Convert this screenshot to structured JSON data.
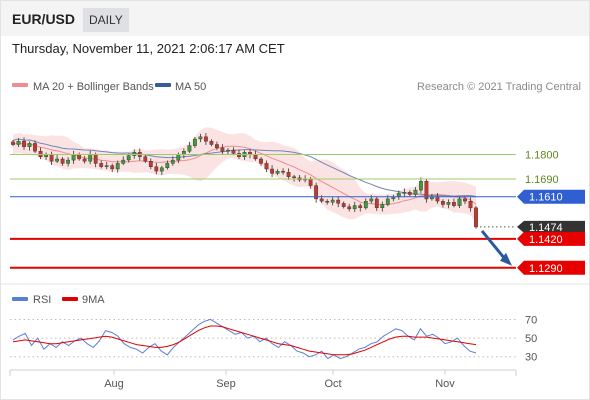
{
  "header": {
    "symbol": "EUR/USD",
    "timeframe": "DAILY"
  },
  "date_line": "Thursday, November 11, 2021 2:06:17 AM CET",
  "credit": "Research © 2021 Trading Central",
  "legend": [
    {
      "label": "MA 20 + Bollinger Bands",
      "color": "#f08c8c"
    },
    {
      "label": "MA 50",
      "color": "#3a5a9c"
    }
  ],
  "rsi_legend": [
    {
      "label": "RSI",
      "color": "#5b7fd6"
    },
    {
      "label": "9MA",
      "color": "#e00000"
    }
  ],
  "levels": [
    {
      "label": "1.1800",
      "value": 1.18,
      "kind": "resistance",
      "color": "#9ccc6a",
      "text_color": "#5c8a1e"
    },
    {
      "label": "1.1690",
      "value": 1.169,
      "kind": "resistance",
      "color": "#9ccc6a",
      "text_color": "#5c8a1e"
    },
    {
      "label": "1.1610",
      "value": 1.161,
      "kind": "pivot",
      "color": "#2f5fd0",
      "text_color": "#ffffff"
    },
    {
      "label": "1.1474",
      "value": 1.1474,
      "kind": "last",
      "color": "#333333",
      "text_color": "#ffffff"
    },
    {
      "label": "1.1420",
      "value": 1.142,
      "kind": "support",
      "color": "#e60000",
      "text_color": "#ffffff"
    },
    {
      "label": "1.1290",
      "value": 1.129,
      "kind": "support",
      "color": "#e60000",
      "text_color": "#ffffff"
    }
  ],
  "chart_data": [
    {
      "type": "candlestick",
      "x_ticks": [
        "Aug",
        "Sep",
        "Oct",
        "Nov"
      ],
      "ylim": [
        1.1235,
        1.2068
      ],
      "last_price": 1.1474,
      "forecast": "bearish arrow toward 1.1290",
      "candles_start": [
        1.186,
        1.184,
        1.186,
        1.183,
        1.185,
        1.181,
        1.179,
        1.1795
      ],
      "candle_closes": [
        1.1845,
        1.186,
        1.1835,
        1.185,
        1.1815,
        1.179,
        1.18,
        1.177,
        1.178,
        1.176,
        1.1775,
        1.18,
        1.178,
        1.177,
        1.18,
        1.176,
        1.1745,
        1.175,
        1.1735,
        1.176,
        1.1775,
        1.1795,
        1.181,
        1.179,
        1.177,
        1.1745,
        1.1725,
        1.174,
        1.176,
        1.1775,
        1.18,
        1.1815,
        1.184,
        1.187,
        1.188,
        1.186,
        1.1845,
        1.183,
        1.1815,
        1.182,
        1.1805,
        1.179,
        1.181,
        1.18,
        1.178,
        1.176,
        1.1735,
        1.1715,
        1.1725,
        1.172,
        1.17,
        1.1695,
        1.1685,
        1.169,
        1.166,
        1.16,
        1.159,
        1.1585,
        1.1595,
        1.158,
        1.1565,
        1.1555,
        1.157,
        1.156,
        1.159,
        1.16,
        1.156,
        1.1575,
        1.16,
        1.161,
        1.1625,
        1.163,
        1.162,
        1.164,
        1.168,
        1.16,
        1.161,
        1.159,
        1.1575,
        1.1585,
        1.157,
        1.16,
        1.159,
        1.156,
        1.1474
      ],
      "ma20_band": {
        "ma20": "smoothed middle band",
        "bands": "shaded pink envelope"
      },
      "ma50": "declining blue line"
    },
    {
      "type": "line",
      "name": "RSI panel",
      "y_ticks": [
        "70",
        "50",
        "30"
      ],
      "ylim": [
        20,
        78
      ],
      "rsi": [
        48,
        52,
        55,
        42,
        50,
        38,
        44,
        40,
        46,
        42,
        47,
        50,
        44,
        40,
        47,
        58,
        56,
        52,
        44,
        40,
        38,
        34,
        40,
        44,
        36,
        32,
        40,
        46,
        52,
        58,
        64,
        68,
        70,
        66,
        62,
        58,
        54,
        56,
        50,
        52,
        46,
        50,
        44,
        40,
        46,
        42,
        36,
        34,
        30,
        32,
        36,
        28,
        32,
        28,
        30,
        34,
        38,
        40,
        44,
        46,
        52,
        56,
        60,
        58,
        52,
        48,
        60,
        52,
        54,
        50,
        44,
        46,
        50,
        42,
        36,
        34
      ],
      "ma9": [
        46,
        47,
        48,
        47,
        46,
        45,
        44,
        44,
        45,
        46,
        47,
        48,
        49,
        50,
        51,
        52,
        51,
        49,
        47,
        45,
        43,
        42,
        41,
        40,
        40,
        41,
        43,
        46,
        50,
        54,
        58,
        61,
        63,
        63,
        62,
        60,
        58,
        56,
        54,
        52,
        50,
        48,
        46,
        44,
        43,
        42,
        40,
        38,
        36,
        35,
        34,
        33,
        32,
        32,
        32,
        33,
        35,
        37,
        40,
        43,
        46,
        49,
        51,
        52,
        52,
        51,
        51,
        51,
        50,
        49,
        48,
        47,
        46,
        45,
        44,
        43
      ]
    }
  ]
}
